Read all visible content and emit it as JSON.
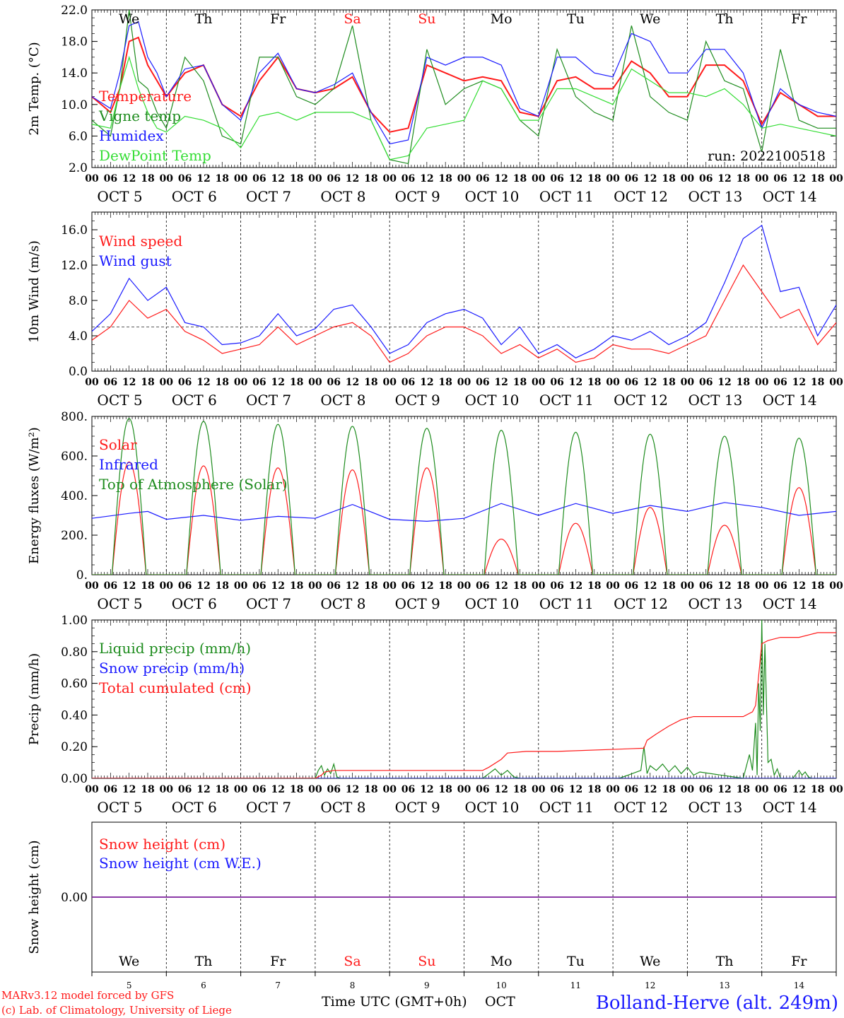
{
  "colors": {
    "red": "#ff1a1a",
    "green": "#1e8c1e",
    "blue": "#1a1aff",
    "lightgreen": "#33dd33",
    "purple": "#7a1a9a",
    "black": "#000000"
  },
  "days": {
    "labels": [
      "We",
      "Th",
      "Fr",
      "Sa",
      "Su",
      "Mo",
      "Tu",
      "We",
      "Th",
      "Fr"
    ],
    "weekend": [
      false,
      false,
      false,
      true,
      true,
      false,
      false,
      false,
      false,
      false
    ],
    "dates": [
      "5",
      "6",
      "7",
      "8",
      "9",
      "10",
      "11",
      "12",
      "13",
      "14"
    ],
    "date_labels": [
      "OCT  5",
      "OCT  6",
      "OCT  7",
      "OCT  8",
      "OCT  9",
      "OCT 10",
      "OCT 11",
      "OCT 12",
      "OCT 13",
      "OCT 14"
    ],
    "hour_labels": [
      "00",
      "06",
      "12",
      "18"
    ],
    "end_hour_label": "00"
  },
  "run_label": "run: 2022100518",
  "footer": {
    "model": "MARv3.12 model forced by GFS",
    "lab": "(c) Lab. of Climatology, University of Liege",
    "xlabel": "Time UTC (GMT+0h)",
    "month": "OCT",
    "station": "Bolland-Herve (alt. 249m)"
  },
  "chart_data": [
    {
      "type": "line",
      "ylabel": "2m Temp. (°C)",
      "ylim": [
        2,
        22
      ],
      "yticks": [
        "2.0",
        "6.0",
        "10.0",
        "14.0",
        "18.0",
        "22.0"
      ],
      "ytick_values": [
        2,
        6,
        10,
        14,
        18,
        22
      ],
      "x_unit": "hours since OCT 5 00 UTC",
      "xlim": [
        0,
        240
      ],
      "series": [
        {
          "name": "Temperature",
          "color": "#ff1a1a",
          "x": [
            0,
            6,
            9,
            12,
            15,
            18,
            21,
            24,
            30,
            36,
            42,
            48,
            54,
            60,
            66,
            72,
            78,
            84,
            90,
            96,
            102,
            108,
            114,
            120,
            126,
            132,
            138,
            144,
            150,
            156,
            162,
            168,
            174,
            180,
            186,
            192,
            198,
            204,
            210,
            216,
            222,
            228,
            234,
            240
          ],
          "y": [
            11,
            9,
            12,
            18,
            18.5,
            15,
            13,
            11,
            14,
            15,
            10,
            8.5,
            13,
            16,
            12,
            11.5,
            12,
            13.5,
            9,
            6.5,
            7,
            15,
            14,
            13,
            13.5,
            13,
            9,
            8.5,
            13,
            13.5,
            12,
            12,
            15.5,
            14,
            11,
            11,
            15,
            15,
            13,
            7.5,
            11.5,
            10,
            8.5,
            8.5
          ]
        },
        {
          "name": "Vigne temp",
          "color": "#1e8c1e",
          "x": [
            0,
            6,
            9,
            12,
            15,
            18,
            21,
            24,
            30,
            36,
            42,
            48,
            54,
            60,
            66,
            72,
            78,
            84,
            90,
            96,
            102,
            108,
            114,
            120,
            126,
            132,
            138,
            144,
            150,
            156,
            162,
            168,
            174,
            180,
            186,
            192,
            198,
            204,
            210,
            216,
            222,
            228,
            234,
            240
          ],
          "y": [
            8,
            6,
            12,
            22,
            13,
            12,
            9,
            7,
            16,
            13,
            6,
            5,
            16,
            16,
            11,
            10,
            12,
            20,
            8,
            3,
            2.5,
            17,
            10,
            12,
            13,
            12,
            8,
            6,
            17,
            11,
            9,
            8,
            20,
            11,
            9,
            8,
            18,
            13,
            12,
            4,
            17,
            8,
            7,
            7
          ]
        },
        {
          "name": "Humidex",
          "color": "#1a1aff",
          "x": [
            0,
            6,
            9,
            12,
            15,
            18,
            21,
            24,
            30,
            36,
            42,
            48,
            54,
            60,
            66,
            72,
            78,
            84,
            90,
            96,
            102,
            108,
            114,
            120,
            126,
            132,
            138,
            144,
            150,
            156,
            162,
            168,
            174,
            180,
            186,
            192,
            198,
            204,
            210,
            216,
            222,
            228,
            234,
            240
          ],
          "y": [
            11,
            9.5,
            14,
            20,
            20.5,
            16,
            14,
            11,
            14.5,
            15,
            10,
            8,
            14,
            16.5,
            12,
            11.5,
            12.5,
            14,
            9,
            5,
            5.5,
            16,
            15,
            16,
            16,
            15,
            9.5,
            8.5,
            16,
            16,
            14,
            13.5,
            19,
            18,
            14,
            14,
            17,
            17,
            14,
            7,
            12,
            10,
            9,
            8.5
          ]
        },
        {
          "name": "DewPoint Temp",
          "color": "#33dd33",
          "x": [
            0,
            6,
            9,
            12,
            15,
            18,
            21,
            24,
            30,
            36,
            42,
            48,
            54,
            60,
            66,
            72,
            78,
            84,
            90,
            96,
            102,
            108,
            114,
            120,
            126,
            132,
            138,
            144,
            150,
            156,
            162,
            168,
            174,
            180,
            186,
            192,
            198,
            204,
            210,
            216,
            222,
            228,
            234,
            240
          ],
          "y": [
            7.5,
            7,
            12,
            16,
            12,
            9,
            7,
            6.5,
            8.5,
            8,
            7,
            4.5,
            8.5,
            9,
            8,
            9,
            9,
            9,
            8,
            3,
            3.5,
            7,
            7.5,
            8,
            13,
            12,
            8,
            8,
            12,
            12,
            11,
            10,
            14.5,
            13,
            11.5,
            11.5,
            11,
            12,
            10,
            7,
            7.5,
            7,
            6.5,
            6
          ]
        }
      ]
    },
    {
      "type": "line",
      "ylabel": "10m Wind (m/s)",
      "ylim": [
        0,
        18
      ],
      "yticks": [
        "0.0",
        "4.0",
        "8.0",
        "12.0",
        "16.0"
      ],
      "ytick_values": [
        0,
        4,
        8,
        12,
        16
      ],
      "reference_line": 5,
      "x_unit": "hours since OCT 5 00 UTC",
      "xlim": [
        0,
        240
      ],
      "series": [
        {
          "name": "Wind speed",
          "color": "#ff1a1a",
          "x": [
            0,
            6,
            12,
            18,
            24,
            30,
            36,
            42,
            48,
            54,
            60,
            66,
            72,
            78,
            84,
            90,
            96,
            102,
            108,
            114,
            120,
            126,
            132,
            138,
            144,
            150,
            156,
            162,
            168,
            174,
            180,
            186,
            192,
            198,
            204,
            210,
            216,
            222,
            228,
            234,
            240
          ],
          "y": [
            3.5,
            5,
            8,
            6,
            7,
            4.5,
            3.5,
            2,
            2.5,
            3,
            5,
            3,
            4,
            5,
            5.5,
            4,
            1,
            2,
            4,
            5,
            5,
            4,
            2,
            3,
            1.5,
            2.5,
            1,
            1.5,
            3,
            2.5,
            2.5,
            2,
            3,
            4,
            8,
            12,
            9,
            6,
            7,
            3,
            5.5
          ]
        },
        {
          "name": "Wind gust",
          "color": "#1a1aff",
          "x": [
            0,
            6,
            12,
            18,
            24,
            30,
            36,
            42,
            48,
            54,
            60,
            66,
            72,
            78,
            84,
            90,
            96,
            102,
            108,
            114,
            120,
            126,
            132,
            138,
            144,
            150,
            156,
            162,
            168,
            174,
            180,
            186,
            192,
            198,
            204,
            210,
            216,
            222,
            228,
            234,
            240
          ],
          "y": [
            4.5,
            6.5,
            10.5,
            8,
            9.5,
            5.5,
            5,
            3,
            3.2,
            4,
            6.5,
            4,
            4.8,
            7,
            7.5,
            5,
            2,
            3,
            5.5,
            6.5,
            7,
            6,
            3,
            5,
            2,
            3,
            1.5,
            2.5,
            4,
            3.5,
            4.5,
            3,
            4,
            5.5,
            10,
            15,
            16.5,
            9,
            9.5,
            4,
            7.5
          ]
        }
      ]
    },
    {
      "type": "line",
      "ylabel": "Energy fluxes (W/m²)",
      "ylim": [
        0,
        800
      ],
      "yticks": [
        "0.",
        "200.",
        "400.",
        "600.",
        "800."
      ],
      "ytick_values": [
        0,
        200,
        400,
        600,
        800
      ],
      "x_unit": "hours since OCT 5 00 UTC",
      "xlim": [
        0,
        240
      ],
      "daylight_hours": [
        6.5,
        17.5
      ],
      "series": [
        {
          "name": "Solar",
          "color": "#ff1a1a",
          "daily_peak": [
            570,
            550,
            540,
            530,
            540,
            180,
            260,
            340,
            250,
            440
          ]
        },
        {
          "name": "Infrared",
          "color": "#1a1aff",
          "x": [
            0,
            12,
            18,
            24,
            36,
            48,
            60,
            72,
            84,
            96,
            108,
            120,
            132,
            144,
            156,
            168,
            180,
            192,
            204,
            216,
            228,
            240
          ],
          "y": [
            285,
            310,
            320,
            280,
            300,
            275,
            295,
            285,
            355,
            280,
            270,
            285,
            360,
            300,
            360,
            310,
            350,
            320,
            365,
            340,
            300,
            320
          ]
        },
        {
          "name": "Top of Atmosphere (Solar)",
          "color": "#1e8c1e",
          "daily_peak": [
            790,
            775,
            760,
            750,
            740,
            730,
            720,
            710,
            700,
            690
          ]
        }
      ]
    },
    {
      "type": "line",
      "ylabel": "Precip (mm/h)",
      "ylim": [
        0,
        1
      ],
      "yticks": [
        "0.00",
        "0.20",
        "0.40",
        "0.60",
        "0.80",
        "1.00"
      ],
      "ytick_values": [
        0,
        0.2,
        0.4,
        0.6,
        0.8,
        1.0
      ],
      "x_unit": "hours since OCT 5 00 UTC",
      "xlim": [
        0,
        240
      ],
      "series": [
        {
          "name": "Liquid precip (mm/h)",
          "color": "#1e8c1e",
          "x": [
            0,
            72,
            73,
            74,
            75,
            76,
            77,
            78,
            79,
            80,
            120,
            126,
            128,
            130,
            132,
            134,
            136,
            138,
            150,
            160,
            168,
            170,
            177,
            178,
            179,
            180,
            182,
            184,
            186,
            188,
            190,
            192,
            194,
            196,
            210,
            212,
            213,
            214,
            214.5,
            215,
            215.5,
            216,
            216.5,
            217,
            218,
            219,
            220,
            221,
            222,
            226,
            228,
            229,
            230,
            231,
            232,
            240
          ],
          "y": [
            0,
            0,
            0.05,
            0.08,
            0.02,
            0.06,
            0.03,
            0.09,
            0.01,
            0,
            0,
            0,
            0.03,
            0.06,
            0.02,
            0.05,
            0.01,
            0,
            0,
            0,
            0,
            0,
            0.05,
            0.2,
            0.03,
            0.08,
            0.05,
            0.09,
            0.04,
            0.08,
            0.03,
            0.07,
            0.02,
            0.04,
            0,
            0.15,
            0.05,
            0.35,
            0.02,
            0.6,
            0.3,
            1.0,
            0.4,
            0.85,
            0.1,
            0.12,
            0.02,
            0.06,
            0,
            0,
            0.05,
            0.02,
            0.04,
            0.01,
            0,
            0
          ]
        },
        {
          "name": "Snow precip (mm/h)",
          "color": "#1a1aff",
          "x": [
            0,
            240
          ],
          "y": [
            0,
            0
          ]
        },
        {
          "name": "Total cumulated (cm)",
          "color": "#ff1a1a",
          "x": [
            0,
            72,
            74,
            75,
            78,
            126,
            128,
            132,
            134,
            140,
            150,
            178,
            179,
            182,
            186,
            190,
            194,
            198,
            210,
            213,
            214,
            215,
            216,
            218,
            222,
            228,
            234,
            240
          ],
          "y": [
            0,
            0,
            0.02,
            0.04,
            0.05,
            0.05,
            0.07,
            0.12,
            0.16,
            0.17,
            0.17,
            0.19,
            0.24,
            0.28,
            0.33,
            0.37,
            0.39,
            0.39,
            0.39,
            0.42,
            0.46,
            0.65,
            0.85,
            0.87,
            0.89,
            0.89,
            0.92,
            0.92
          ]
        }
      ]
    },
    {
      "type": "line",
      "ylabel": "Snow height (cm)",
      "ylim": [
        -1,
        1
      ],
      "yticks": [
        "0.00"
      ],
      "ytick_values": [
        0
      ],
      "x_unit": "hours since OCT 5 00 UTC",
      "xlim": [
        0,
        240
      ],
      "series": [
        {
          "name": "Snow height (cm)",
          "color": "#ff1a1a",
          "x": [
            0,
            240
          ],
          "y": [
            0,
            0
          ]
        },
        {
          "name": "Snow height (cm W.E.)",
          "color": "#1a1aff",
          "x": [
            0,
            240
          ],
          "y": [
            0,
            0
          ]
        }
      ]
    }
  ]
}
